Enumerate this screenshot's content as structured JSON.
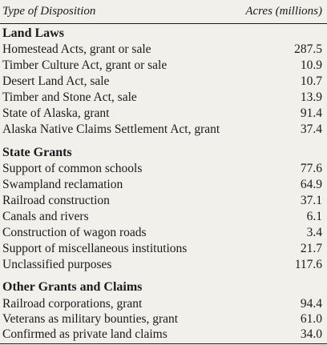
{
  "header": {
    "col_type": "Type of Disposition",
    "col_acres": "Acres (millions)"
  },
  "sections": [
    {
      "title": "Land Laws",
      "rows": [
        {
          "label": "Homestead Acts, grant or sale",
          "value": "287.5"
        },
        {
          "label": "Timber Culture Act, grant or sale",
          "value": "10.9"
        },
        {
          "label": "Desert Land Act, sale",
          "value": "10.7"
        },
        {
          "label": "Timber and Stone Act, sale",
          "value": "13.9"
        },
        {
          "label": "State of Alaska, grant",
          "value": "91.4"
        },
        {
          "label": "Alaska Native Claims Settlement Act, grant",
          "value": "37.4"
        }
      ]
    },
    {
      "title": "State Grants",
      "rows": [
        {
          "label": "Support of common schools",
          "value": "77.6"
        },
        {
          "label": "Swampland reclamation",
          "value": "64.9"
        },
        {
          "label": "Railroad construction",
          "value": "37.1"
        },
        {
          "label": "Canals and rivers",
          "value": "6.1"
        },
        {
          "label": "Construction of wagon roads",
          "value": "3.4"
        },
        {
          "label": "Support of miscellaneous institutions",
          "value": "21.7"
        },
        {
          "label": "Unclassified purposes",
          "value": "117.6"
        }
      ]
    },
    {
      "title": "Other Grants and Claims",
      "rows": [
        {
          "label": "Railroad corporations, grant",
          "value": "94.4"
        },
        {
          "label": "Veterans as military bounties, grant",
          "value": "61.0"
        },
        {
          "label": "Confirmed as private land claims",
          "value": "34.0"
        }
      ]
    }
  ]
}
